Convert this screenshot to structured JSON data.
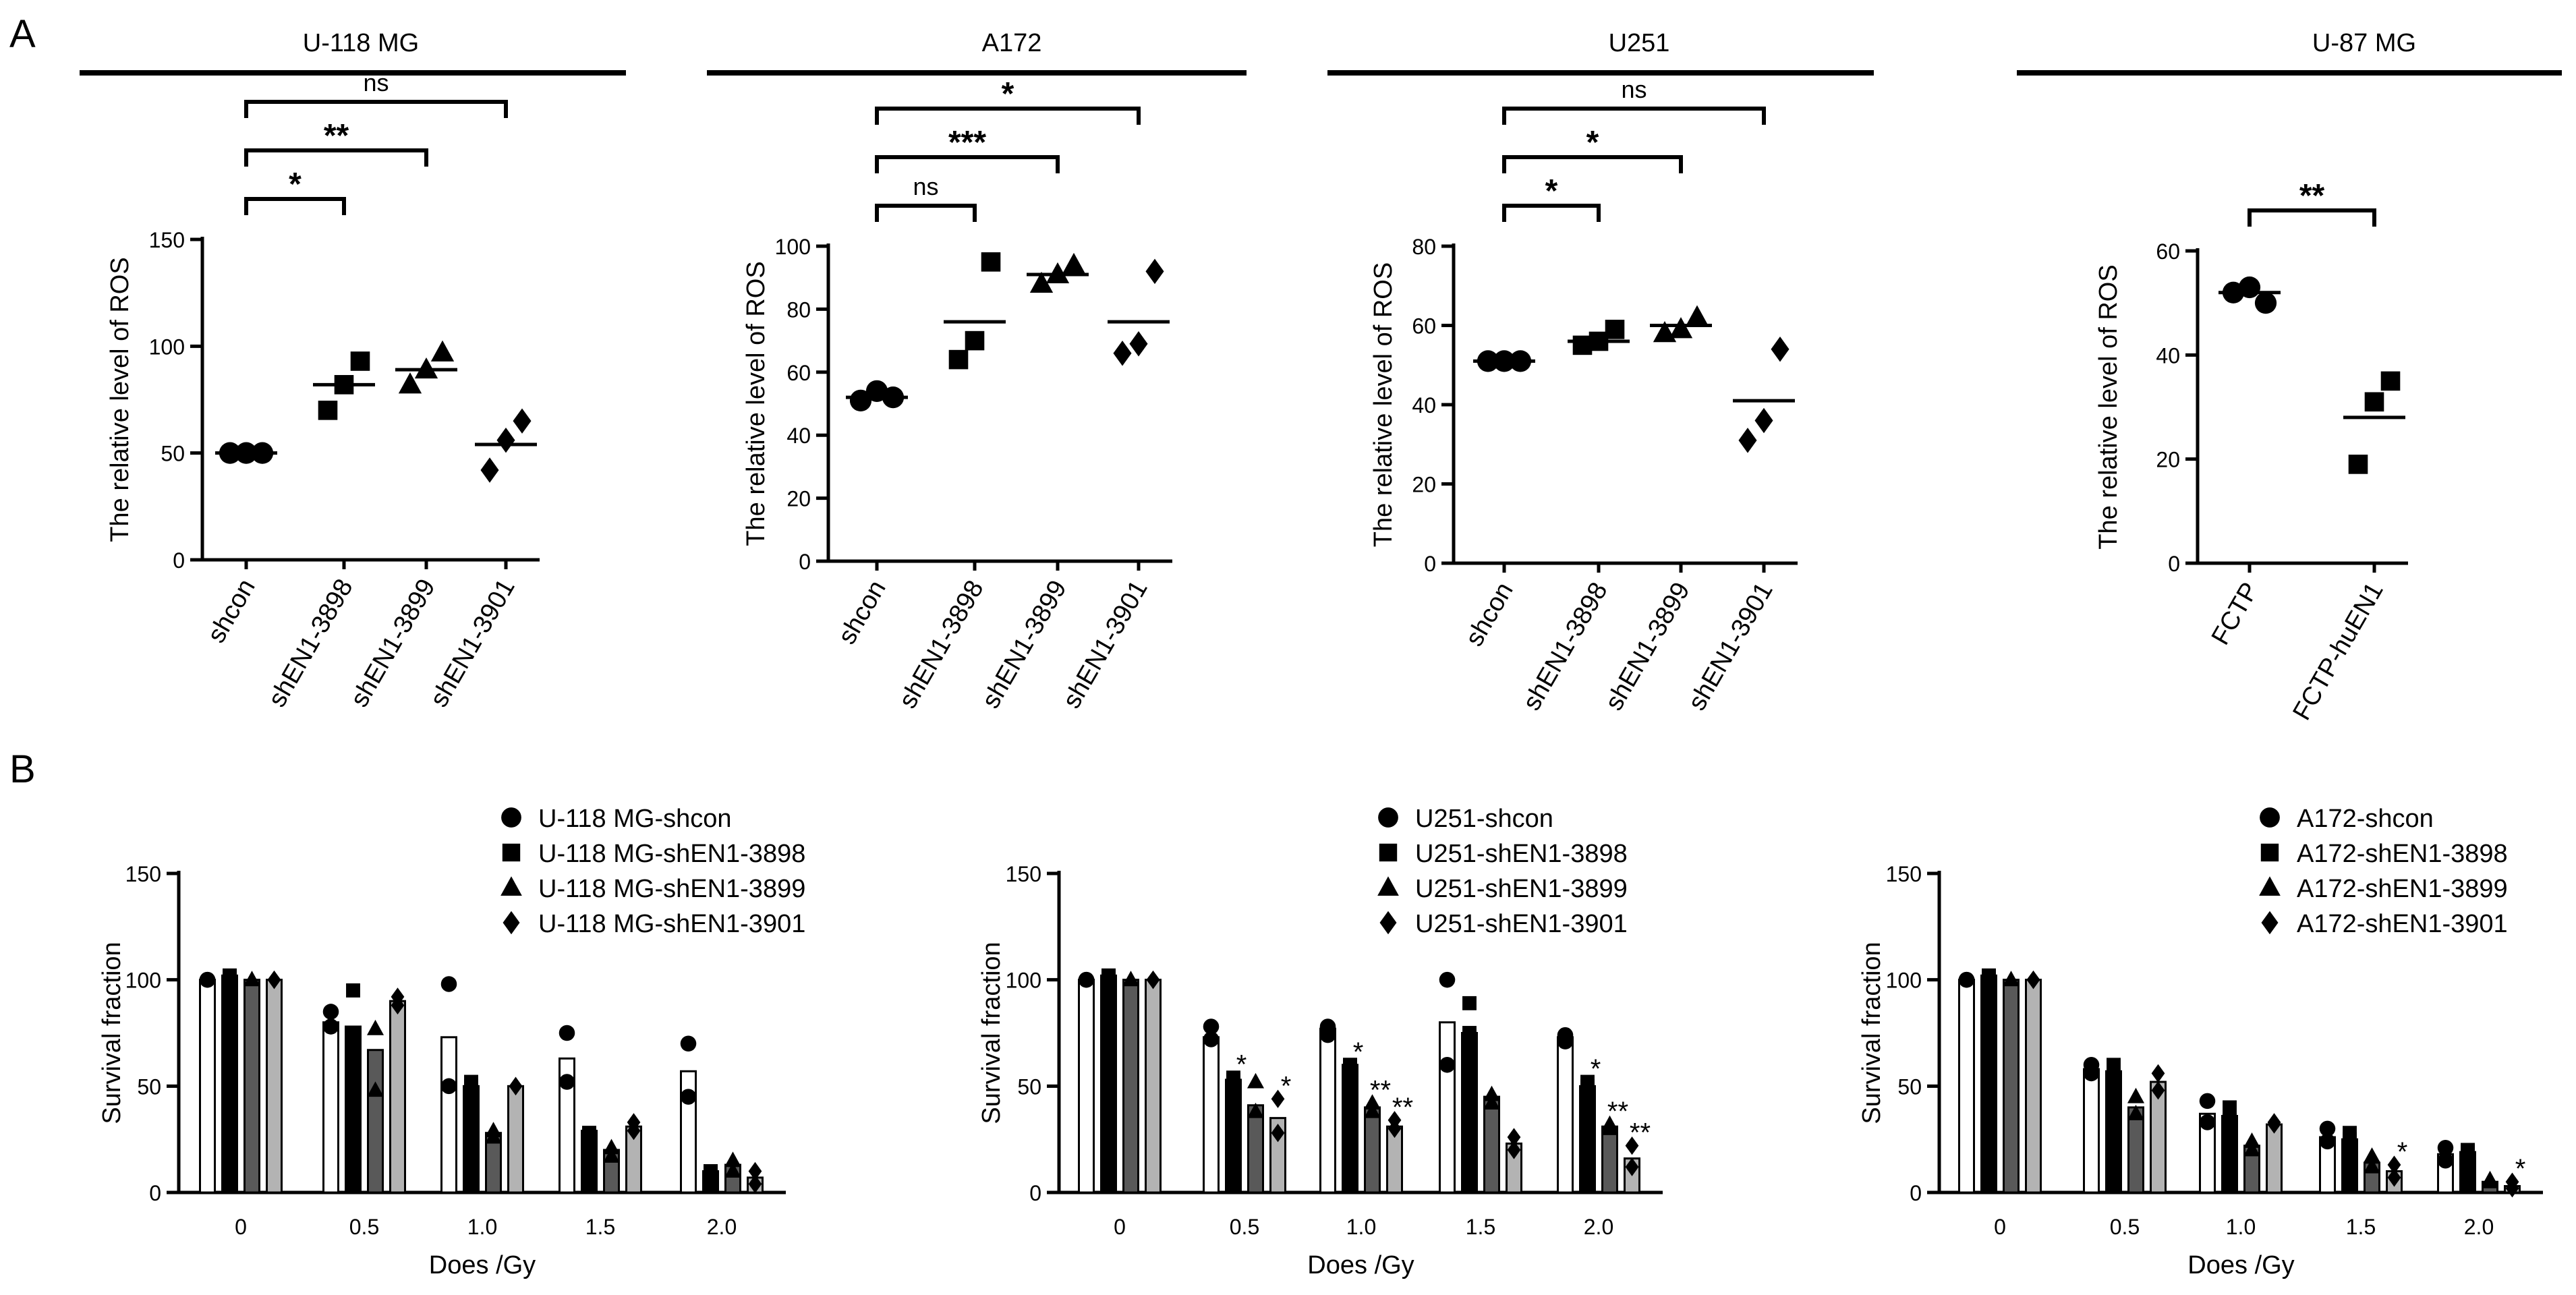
{
  "panel_labels": {
    "a": "A",
    "b": "B"
  },
  "colors": {
    "ink": "#000000",
    "dark_gray": "#595959",
    "light_gray": "#b3b3b3",
    "white": "#ffffff"
  },
  "marker_icons": {
    "shcon": "circle",
    "shEN1-3898": "square",
    "shEN1-3899": "triangle",
    "shEN1-3901": "diamond"
  },
  "chart_data": [
    {
      "id": "a1",
      "type": "scatter",
      "title": "U-118 MG",
      "ylabel": "The relative level of ROS",
      "ylim": [
        0,
        150
      ],
      "yticks": [
        0,
        50,
        100,
        150
      ],
      "categories": [
        "shcon",
        "shEN1-3898",
        "shEN1-3899",
        "shEN1-3901"
      ],
      "markers": [
        "circle",
        "square",
        "triangle",
        "diamond"
      ],
      "points": [
        [
          50,
          50,
          50
        ],
        [
          70,
          82,
          93
        ],
        [
          82,
          89,
          97
        ],
        [
          42,
          56,
          65
        ]
      ],
      "means": [
        50,
        82,
        89,
        54
      ],
      "brackets": [
        {
          "from": 0,
          "to": 1,
          "label": "*"
        },
        {
          "from": 0,
          "to": 2,
          "label": "**"
        },
        {
          "from": 0,
          "to": 3,
          "label": "ns"
        }
      ]
    },
    {
      "id": "a2",
      "type": "scatter",
      "title": "A172",
      "ylabel": "The relative level of ROS",
      "ylim": [
        0,
        100
      ],
      "yticks": [
        0,
        20,
        40,
        60,
        80,
        100
      ],
      "categories": [
        "shcon",
        "shEN1-3898",
        "shEN1-3899",
        "shEN1-3901"
      ],
      "markers": [
        "circle",
        "square",
        "triangle",
        "diamond"
      ],
      "points": [
        [
          51,
          54,
          52
        ],
        [
          64,
          70,
          95
        ],
        [
          88,
          91,
          94
        ],
        [
          66,
          69,
          92
        ]
      ],
      "means": [
        52,
        76,
        91,
        76
      ],
      "brackets": [
        {
          "from": 0,
          "to": 1,
          "label": "ns"
        },
        {
          "from": 0,
          "to": 2,
          "label": "***"
        },
        {
          "from": 0,
          "to": 3,
          "label": "*"
        }
      ]
    },
    {
      "id": "a3",
      "type": "scatter",
      "title": "U251",
      "ylabel": "The relative level of ROS",
      "ylim": [
        0,
        80
      ],
      "yticks": [
        0,
        20,
        40,
        60,
        80
      ],
      "categories": [
        "shcon",
        "shEN1-3898",
        "shEN1-3899",
        "shEN1-3901"
      ],
      "markers": [
        "circle",
        "square",
        "triangle",
        "diamond"
      ],
      "points": [
        [
          51,
          51,
          51
        ],
        [
          55,
          56,
          59
        ],
        [
          58,
          59,
          62
        ],
        [
          31,
          36,
          54
        ]
      ],
      "means": [
        51,
        56,
        60,
        41
      ],
      "brackets": [
        {
          "from": 0,
          "to": 1,
          "label": "*"
        },
        {
          "from": 0,
          "to": 2,
          "label": "*"
        },
        {
          "from": 0,
          "to": 3,
          "label": "ns"
        }
      ]
    },
    {
      "id": "a4",
      "type": "scatter",
      "title": "U-87 MG",
      "ylabel": "The relative level of ROS",
      "ylim": [
        0,
        60
      ],
      "yticks": [
        0,
        20,
        40,
        60
      ],
      "categories": [
        "FCTP",
        "FCTP-huEN1"
      ],
      "markers": [
        "circle",
        "square"
      ],
      "points": [
        [
          52,
          53,
          50
        ],
        [
          19,
          31,
          35
        ]
      ],
      "means": [
        52,
        28
      ],
      "brackets": [
        {
          "from": 0,
          "to": 1,
          "label": "**"
        }
      ]
    },
    {
      "id": "b1",
      "type": "bar",
      "xlabel": "Does /Gy",
      "ylabel": "Survival fraction",
      "ylim": [
        0,
        150
      ],
      "yticks": [
        0,
        50,
        100,
        150
      ],
      "categories": [
        "0",
        "0.5",
        "1.0",
        "1.5",
        "2.0"
      ],
      "series": [
        {
          "name": "U-118 MG-shcon",
          "marker": "circle",
          "fill": "#ffffff",
          "values": [
            100,
            80,
            73,
            63,
            57
          ],
          "points": [
            [
              100,
              100
            ],
            [
              78,
              85
            ],
            [
              50,
              98
            ],
            [
              52,
              75
            ],
            [
              45,
              70
            ]
          ],
          "stars": [
            "",
            "",
            "",
            "",
            ""
          ]
        },
        {
          "name": "U-118 MG-shEN1-3898",
          "marker": "square",
          "fill": "#000000",
          "values": [
            102,
            78,
            50,
            29,
            10
          ],
          "points": [
            [
              102,
              102
            ],
            [
              60,
              95
            ],
            [
              50,
              52
            ],
            [
              28,
              28
            ],
            [
              10,
              10
            ]
          ],
          "stars": [
            "",
            "",
            "",
            "",
            ""
          ]
        },
        {
          "name": "U-118 MG-shEN1-3899",
          "marker": "triangle",
          "fill": "#595959",
          "values": [
            100,
            67,
            28,
            20,
            13
          ],
          "points": [
            [
              100,
              100
            ],
            [
              48,
              77
            ],
            [
              26,
              29
            ],
            [
              17,
              21
            ],
            [
              10,
              15
            ]
          ],
          "stars": [
            "",
            "",
            "",
            "",
            ""
          ]
        },
        {
          "name": "U-118 MG-shEN1-3901",
          "marker": "diamond",
          "fill": "#b3b3b3",
          "values": [
            100,
            90,
            50,
            31,
            7
          ],
          "points": [
            [
              100,
              100
            ],
            [
              88,
              92
            ],
            [
              50,
              50
            ],
            [
              29,
              33
            ],
            [
              4,
              10
            ]
          ],
          "stars": [
            "",
            "",
            "",
            "",
            ""
          ]
        }
      ]
    },
    {
      "id": "b2",
      "type": "bar",
      "xlabel": "Does /Gy",
      "ylabel": "Survival fraction",
      "ylim": [
        0,
        150
      ],
      "yticks": [
        0,
        50,
        100,
        150
      ],
      "categories": [
        "0",
        "0.5",
        "1.0",
        "1.5",
        "2.0"
      ],
      "series": [
        {
          "name": "U251-shcon",
          "marker": "circle",
          "fill": "#ffffff",
          "values": [
            100,
            73,
            77,
            80,
            73
          ],
          "points": [
            [
              100,
              100
            ],
            [
              72,
              78
            ],
            [
              74,
              78
            ],
            [
              60,
              100
            ],
            [
              71,
              74
            ]
          ],
          "stars": [
            "",
            "",
            "",
            "",
            ""
          ]
        },
        {
          "name": "U251-shEN1-3898",
          "marker": "square",
          "fill": "#000000",
          "values": [
            102,
            53,
            60,
            75,
            50
          ],
          "points": [
            [
              102,
              102
            ],
            [
              53,
              54
            ],
            [
              60,
              60
            ],
            [
              75,
              89
            ],
            [
              50,
              52
            ]
          ],
          "stars": [
            "",
            "*",
            "*",
            "",
            "*"
          ]
        },
        {
          "name": "U251-shEN1-3899",
          "marker": "triangle",
          "fill": "#595959",
          "values": [
            100,
            41,
            40,
            45,
            31
          ],
          "points": [
            [
              100,
              100
            ],
            [
              38,
              52
            ],
            [
              38,
              42
            ],
            [
              42,
              46
            ],
            [
              30,
              32
            ]
          ],
          "stars": [
            "",
            "",
            "**",
            "",
            "**"
          ]
        },
        {
          "name": "U251-shEN1-3901",
          "marker": "diamond",
          "fill": "#b3b3b3",
          "values": [
            100,
            35,
            31,
            23,
            16
          ],
          "points": [
            [
              100,
              100
            ],
            [
              28,
              44
            ],
            [
              30,
              34
            ],
            [
              20,
              26
            ],
            [
              12,
              22
            ]
          ],
          "stars": [
            "",
            "*",
            "**",
            "",
            "**"
          ]
        }
      ]
    },
    {
      "id": "b3",
      "type": "bar",
      "xlabel": "Does /Gy",
      "ylabel": "Survival fraction",
      "ylim": [
        0,
        150
      ],
      "yticks": [
        0,
        50,
        100,
        150
      ],
      "categories": [
        "0",
        "0.5",
        "1.0",
        "1.5",
        "2.0"
      ],
      "series": [
        {
          "name": "A172-shcon",
          "marker": "circle",
          "fill": "#ffffff",
          "values": [
            100,
            58,
            37,
            26,
            18
          ],
          "points": [
            [
              100,
              100
            ],
            [
              56,
              60
            ],
            [
              33,
              43
            ],
            [
              24,
              30
            ],
            [
              15,
              21
            ]
          ],
          "stars": [
            "",
            "",
            "",
            "",
            ""
          ]
        },
        {
          "name": "A172-shEN1-3898",
          "marker": "square",
          "fill": "#000000",
          "values": [
            102,
            57,
            36,
            25,
            19
          ],
          "points": [
            [
              102,
              102
            ],
            [
              54,
              60
            ],
            [
              34,
              40
            ],
            [
              25,
              28
            ],
            [
              19,
              20
            ]
          ],
          "stars": [
            "",
            "",
            "",
            "",
            ""
          ]
        },
        {
          "name": "A172-shEN1-3899",
          "marker": "triangle",
          "fill": "#595959",
          "values": [
            100,
            40,
            22,
            14,
            5
          ],
          "points": [
            [
              100,
              100
            ],
            [
              37,
              45
            ],
            [
              20,
              24
            ],
            [
              12,
              17
            ],
            [
              5,
              6
            ]
          ],
          "stars": [
            "",
            "",
            "",
            "",
            ""
          ]
        },
        {
          "name": "A172-shEN1-3901",
          "marker": "diamond",
          "fill": "#b3b3b3",
          "values": [
            100,
            52,
            32,
            10,
            3
          ],
          "points": [
            [
              100,
              100
            ],
            [
              48,
              56
            ],
            [
              32,
              33
            ],
            [
              7,
              13
            ],
            [
              2,
              5
            ]
          ],
          "stars": [
            "",
            "",
            "",
            "*",
            "*"
          ]
        }
      ]
    }
  ]
}
